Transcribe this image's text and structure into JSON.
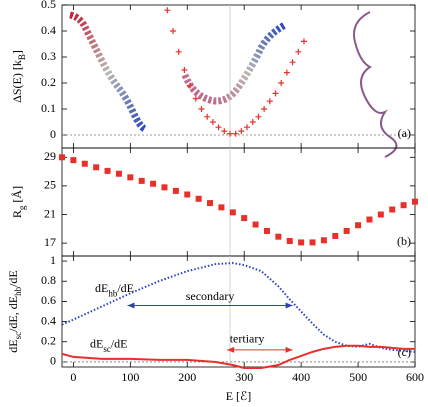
{
  "chart_data": [
    {
      "type": "scatter",
      "ylabel": "ΔS(E) [k_{B}]",
      "panel_label": "(a)",
      "x": [
        165,
        175,
        185,
        195,
        205,
        215,
        225,
        235,
        245,
        255,
        265,
        275,
        285,
        295,
        305,
        315,
        325,
        335,
        345,
        355,
        365,
        375,
        385,
        395,
        405
      ],
      "values": [
        0.48,
        0.4,
        0.32,
        0.25,
        0.19,
        0.14,
        0.1,
        0.07,
        0.05,
        0.03,
        0.015,
        0.005,
        0.005,
        0.015,
        0.03,
        0.05,
        0.07,
        0.1,
        0.13,
        0.16,
        0.2,
        0.24,
        0.28,
        0.32,
        0.36
      ],
      "color": "#e8302a",
      "marker": "cross",
      "xlim": [
        -20,
        600
      ],
      "ylim": [
        -0.05,
        0.5
      ],
      "yticks": [
        0,
        0.1,
        0.2,
        0.3,
        0.4,
        0.5
      ],
      "hline": 0,
      "vline": 275
    },
    {
      "type": "scatter",
      "ylabel": "R_{g} [Å]",
      "panel_label": "(b)",
      "x": [
        -20,
        0,
        20,
        40,
        60,
        80,
        100,
        120,
        140,
        160,
        180,
        200,
        220,
        240,
        260,
        280,
        300,
        320,
        340,
        360,
        380,
        400,
        420,
        440,
        460,
        480,
        500,
        520,
        540,
        560,
        580,
        600
      ],
      "values": [
        29,
        28.6,
        28.1,
        27.6,
        27.1,
        26.7,
        26.2,
        25.7,
        25.3,
        24.8,
        24.3,
        23.8,
        23.2,
        22.6,
        22.0,
        21.3,
        20.5,
        19.6,
        18.7,
        17.9,
        17.3,
        17.1,
        17.1,
        17.4,
        18.0,
        18.7,
        19.5,
        20.3,
        21.0,
        21.7,
        22.3,
        22.8
      ],
      "color": "#e8302a",
      "marker": "square",
      "xlim": [
        -20,
        600
      ],
      "ylim": [
        15.2,
        30.3
      ],
      "yticks": [
        17,
        21,
        25,
        29
      ],
      "vline": 275
    },
    {
      "type": "line",
      "ylabel": "dE_{sc}/dE, dE_{hb}/dE",
      "panel_label": "(c)",
      "xlabel": "E [ℰ]",
      "x": [
        -20,
        0,
        50,
        100,
        150,
        200,
        250,
        280,
        300,
        330,
        360,
        380,
        400,
        420,
        440,
        460,
        480,
        500,
        520,
        540,
        560,
        580,
        600
      ],
      "series": [
        {
          "color": "#2a3fc8",
          "dash": true,
          "values": [
            0.37,
            0.42,
            0.55,
            0.68,
            0.8,
            0.9,
            0.97,
            0.98,
            0.96,
            0.9,
            0.75,
            0.62,
            0.5,
            0.38,
            0.27,
            0.2,
            0.16,
            0.15,
            0.18,
            0.14,
            0.12,
            0.11,
            0.1
          ]
        },
        {
          "color": "#e8302a",
          "dash": false,
          "values": [
            0.08,
            0.05,
            0.03,
            0.03,
            0.02,
            0.02,
            0.0,
            -0.03,
            -0.06,
            -0.06,
            -0.03,
            0.02,
            0.06,
            0.1,
            0.13,
            0.15,
            0.16,
            0.16,
            0.15,
            0.15,
            0.14,
            0.13,
            0.13
          ]
        }
      ],
      "annotations": [
        "dE_{hb}/dE",
        "secondary",
        "tertiary",
        "dE_{sc}/dE"
      ],
      "xlim": [
        -20,
        600
      ],
      "xticks": [
        0,
        100,
        200,
        300,
        400,
        500,
        600
      ],
      "ylim": [
        -0.05,
        1.05
      ],
      "yticks": [
        0,
        0.2,
        0.4,
        0.6,
        0.8,
        1
      ],
      "hline": 0,
      "vline": 275
    }
  ]
}
